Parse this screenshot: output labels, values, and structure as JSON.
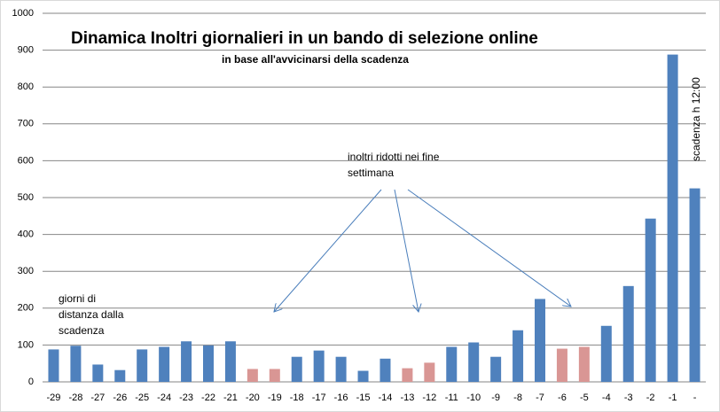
{
  "chart_data": {
    "type": "bar",
    "title": "Dinamica Inoltri giornalieri in un bando di selezione online",
    "subtitle": "in base all'avvicinarsi della scadenza",
    "annotations": {
      "weekend": [
        "inoltri ridotti nei fine",
        "settimana"
      ],
      "distance": [
        "giorni di",
        "distanza dalla",
        "scadenza"
      ],
      "deadline": "scadenza h 12:00"
    },
    "categories": [
      "-29",
      "-28",
      "-27",
      "-26",
      "-25",
      "-24",
      "-23",
      "-22",
      "-21",
      "-20",
      "-19",
      "-18",
      "-17",
      "-16",
      "-15",
      "-14",
      "-13",
      "-12",
      "-11",
      "-10",
      "-9",
      "-8",
      "-7",
      "-6",
      "-5",
      "-4",
      "-3",
      "-2",
      "-1",
      "-"
    ],
    "values": [
      88,
      98,
      47,
      32,
      88,
      95,
      110,
      99,
      110,
      35,
      35,
      68,
      85,
      68,
      30,
      63,
      37,
      52,
      95,
      107,
      68,
      140,
      225,
      90,
      95,
      152,
      260,
      443,
      888,
      525
    ],
    "colors": [
      "#4f81bd",
      "#4f81bd",
      "#4f81bd",
      "#4f81bd",
      "#4f81bd",
      "#4f81bd",
      "#4f81bd",
      "#4f81bd",
      "#4f81bd",
      "#d99694",
      "#d99694",
      "#4f81bd",
      "#4f81bd",
      "#4f81bd",
      "#4f81bd",
      "#4f81bd",
      "#d99694",
      "#d99694",
      "#4f81bd",
      "#4f81bd",
      "#4f81bd",
      "#4f81bd",
      "#4f81bd",
      "#d99694",
      "#d99694",
      "#4f81bd",
      "#4f81bd",
      "#4f81bd",
      "#4f81bd",
      "#4f81bd"
    ],
    "ylim": [
      0,
      1000
    ],
    "yticks": [
      0,
      100,
      200,
      300,
      400,
      500,
      600,
      700,
      800,
      900,
      1000
    ],
    "grid": true
  }
}
